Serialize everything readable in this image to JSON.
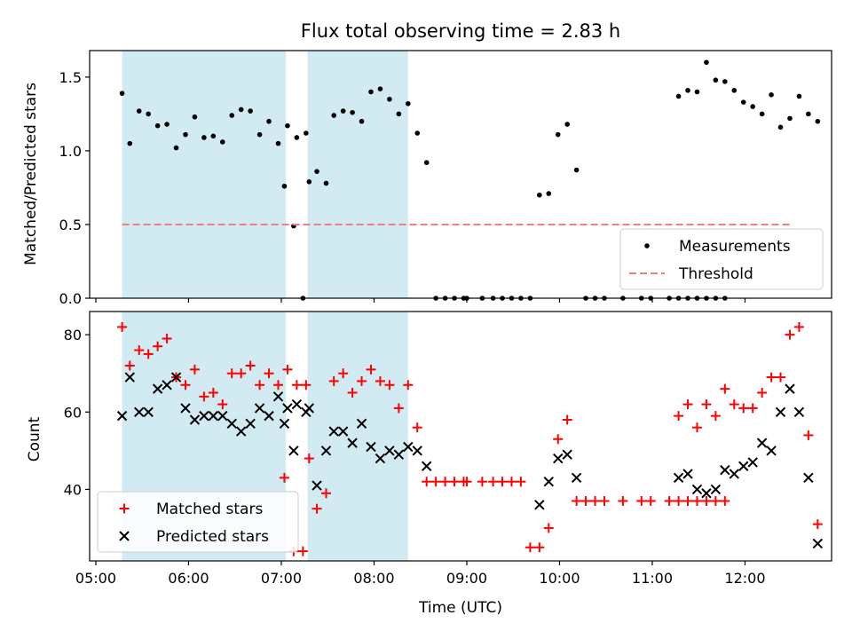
{
  "chart_data": [
    {
      "type": "scatter",
      "title": "Flux total observing time = 2.83 h",
      "ylabel": "Matched/Predicted stars",
      "xlim": [
        "04:56",
        "12:56"
      ],
      "ylim": [
        0,
        1.68
      ],
      "yticks": [
        0.0,
        0.5,
        1.0,
        1.5
      ],
      "ytick_labels": [
        "0.0",
        "0.5",
        "1.0",
        "1.5"
      ],
      "shaded_spans": [
        [
          "05:17",
          "07:03"
        ],
        [
          "07:17",
          "08:22"
        ]
      ],
      "shaded_color": "#add8e6",
      "legend_position": "lower-right",
      "series": [
        {
          "name": "Measurements",
          "marker": "dot",
          "color": "#000000",
          "points": [
            [
              "05:17",
              1.39
            ],
            [
              "05:22",
              1.05
            ],
            [
              "05:28",
              1.27
            ],
            [
              "05:34",
              1.25
            ],
            [
              "05:40",
              1.17
            ],
            [
              "05:46",
              1.18
            ],
            [
              "05:52",
              1.02
            ],
            [
              "05:58",
              1.11
            ],
            [
              "06:04",
              1.23
            ],
            [
              "06:10",
              1.09
            ],
            [
              "06:16",
              1.1
            ],
            [
              "06:22",
              1.06
            ],
            [
              "06:28",
              1.24
            ],
            [
              "06:34",
              1.28
            ],
            [
              "06:40",
              1.27
            ],
            [
              "06:46",
              1.11
            ],
            [
              "06:52",
              1.2
            ],
            [
              "06:58",
              1.05
            ],
            [
              "07:04",
              1.17
            ],
            [
              "07:10",
              1.09
            ],
            [
              "07:16",
              1.12
            ],
            [
              "07:02",
              0.76
            ],
            [
              "07:08",
              0.49
            ],
            [
              "07:14",
              0.0
            ],
            [
              "07:18",
              0.79
            ],
            [
              "07:23",
              0.86
            ],
            [
              "07:29",
              0.78
            ],
            [
              "07:34",
              1.24
            ],
            [
              "07:40",
              1.27
            ],
            [
              "07:46",
              1.26
            ],
            [
              "07:52",
              1.2
            ],
            [
              "07:58",
              1.4
            ],
            [
              "08:04",
              1.42
            ],
            [
              "08:10",
              1.35
            ],
            [
              "08:16",
              1.25
            ],
            [
              "08:22",
              1.32
            ],
            [
              "08:28",
              1.12
            ],
            [
              "08:34",
              0.92
            ],
            [
              "08:40",
              0.0
            ],
            [
              "08:46",
              0.0
            ],
            [
              "08:52",
              0.0
            ],
            [
              "08:58",
              0.0
            ],
            [
              "09:00",
              0.0
            ],
            [
              "09:10",
              0.0
            ],
            [
              "09:17",
              0.0
            ],
            [
              "09:23",
              0.0
            ],
            [
              "09:29",
              0.0
            ],
            [
              "09:35",
              0.0
            ],
            [
              "09:41",
              0.0
            ],
            [
              "09:47",
              0.7
            ],
            [
              "09:53",
              0.71
            ],
            [
              "09:59",
              1.11
            ],
            [
              "10:05",
              1.18
            ],
            [
              "10:11",
              0.87
            ],
            [
              "10:17",
              0.0
            ],
            [
              "10:23",
              0.0
            ],
            [
              "10:29",
              0.0
            ],
            [
              "10:41",
              0.0
            ],
            [
              "10:53",
              0.0
            ],
            [
              "10:59",
              0.0
            ],
            [
              "11:11",
              0.0
            ],
            [
              "11:17",
              0.0
            ],
            [
              "11:23",
              0.0
            ],
            [
              "11:29",
              0.0
            ],
            [
              "11:35",
              0.0
            ],
            [
              "11:41",
              0.0
            ],
            [
              "11:47",
              0.0
            ],
            [
              "11:17",
              1.37
            ],
            [
              "11:23",
              1.41
            ],
            [
              "11:29",
              1.4
            ],
            [
              "11:35",
              1.6
            ],
            [
              "11:41",
              1.48
            ],
            [
              "11:47",
              1.47
            ],
            [
              "11:53",
              1.41
            ],
            [
              "11:59",
              1.33
            ],
            [
              "12:05",
              1.3
            ],
            [
              "12:11",
              1.25
            ],
            [
              "12:17",
              1.38
            ],
            [
              "12:23",
              1.16
            ],
            [
              "12:29",
              1.22
            ],
            [
              "12:35",
              1.37
            ],
            [
              "12:41",
              1.25
            ],
            [
              "12:47",
              1.2
            ]
          ]
        },
        {
          "name": "Threshold",
          "line": "dashed",
          "color": "#f08080",
          "x": [
            "05:17",
            "12:31"
          ],
          "y": [
            0.5,
            0.5
          ]
        }
      ]
    },
    {
      "type": "scatter",
      "xlabel": "Time (UTC)",
      "ylabel": "Count",
      "xlim": [
        "04:56",
        "12:56"
      ],
      "ylim": [
        21.5,
        86
      ],
      "yticks": [
        40,
        60,
        80
      ],
      "ytick_labels": [
        "40",
        "60",
        "80"
      ],
      "xticks": [
        "05:00",
        "06:00",
        "07:00",
        "08:00",
        "09:00",
        "10:00",
        "11:00",
        "12:00"
      ],
      "xtick_labels": [
        "05:00",
        "06:00",
        "07:00",
        "08:00",
        "09:00",
        "10:00",
        "11:00",
        "12:00"
      ],
      "shaded_spans": [
        [
          "05:17",
          "07:03"
        ],
        [
          "07:17",
          "08:22"
        ]
      ],
      "shaded_color": "#add8e6",
      "legend_position": "lower-left",
      "series": [
        {
          "name": "Matched stars",
          "marker": "plus",
          "color": "#ff0000",
          "points": [
            [
              "05:17",
              82
            ],
            [
              "05:22",
              72
            ],
            [
              "05:28",
              76
            ],
            [
              "05:34",
              75
            ],
            [
              "05:40",
              77
            ],
            [
              "05:46",
              79
            ],
            [
              "05:52",
              69
            ],
            [
              "05:58",
              67
            ],
            [
              "06:04",
              71
            ],
            [
              "06:10",
              64
            ],
            [
              "06:16",
              65
            ],
            [
              "06:22",
              62
            ],
            [
              "06:28",
              70
            ],
            [
              "06:34",
              70
            ],
            [
              "06:40",
              72
            ],
            [
              "06:46",
              67
            ],
            [
              "06:52",
              70
            ],
            [
              "06:58",
              67
            ],
            [
              "07:04",
              71
            ],
            [
              "07:10",
              67
            ],
            [
              "07:16",
              67
            ],
            [
              "07:02",
              43
            ],
            [
              "07:08",
              24
            ],
            [
              "07:14",
              24
            ],
            [
              "07:18",
              48
            ],
            [
              "07:23",
              35
            ],
            [
              "07:29",
              39
            ],
            [
              "07:34",
              68
            ],
            [
              "07:40",
              70
            ],
            [
              "07:46",
              65
            ],
            [
              "07:52",
              68
            ],
            [
              "07:58",
              71
            ],
            [
              "08:04",
              68
            ],
            [
              "08:10",
              67
            ],
            [
              "08:16",
              61
            ],
            [
              "08:22",
              67
            ],
            [
              "08:28",
              56
            ],
            [
              "08:34",
              42
            ],
            [
              "08:40",
              42
            ],
            [
              "08:46",
              42
            ],
            [
              "08:52",
              42
            ],
            [
              "08:58",
              42
            ],
            [
              "09:00",
              42
            ],
            [
              "09:10",
              42
            ],
            [
              "09:17",
              42
            ],
            [
              "09:23",
              42
            ],
            [
              "09:29",
              42
            ],
            [
              "09:35",
              42
            ],
            [
              "09:41",
              25
            ],
            [
              "09:47",
              25
            ],
            [
              "09:53",
              30
            ],
            [
              "09:59",
              53
            ],
            [
              "10:05",
              58
            ],
            [
              "10:11",
              37
            ],
            [
              "10:17",
              37
            ],
            [
              "10:23",
              37
            ],
            [
              "10:29",
              37
            ],
            [
              "10:41",
              37
            ],
            [
              "10:53",
              37
            ],
            [
              "10:59",
              37
            ],
            [
              "11:11",
              37
            ],
            [
              "11:17",
              37
            ],
            [
              "11:23",
              37
            ],
            [
              "11:29",
              37
            ],
            [
              "11:35",
              37
            ],
            [
              "11:41",
              37
            ],
            [
              "11:47",
              37
            ],
            [
              "11:17",
              59
            ],
            [
              "11:23",
              62
            ],
            [
              "11:29",
              56
            ],
            [
              "11:35",
              62
            ],
            [
              "11:41",
              59
            ],
            [
              "11:47",
              66
            ],
            [
              "11:53",
              62
            ],
            [
              "11:59",
              61
            ],
            [
              "12:05",
              61
            ],
            [
              "12:11",
              65
            ],
            [
              "12:17",
              69
            ],
            [
              "12:23",
              69
            ],
            [
              "12:29",
              80
            ],
            [
              "12:35",
              82
            ],
            [
              "12:41",
              54
            ],
            [
              "12:47",
              31
            ]
          ]
        },
        {
          "name": "Predicted stars",
          "marker": "x",
          "color": "#000000",
          "points": [
            [
              "05:17",
              59
            ],
            [
              "05:22",
              69
            ],
            [
              "05:28",
              60
            ],
            [
              "05:34",
              60
            ],
            [
              "05:40",
              66
            ],
            [
              "05:46",
              67
            ],
            [
              "05:52",
              69
            ],
            [
              "05:58",
              61
            ],
            [
              "06:04",
              58
            ],
            [
              "06:10",
              59
            ],
            [
              "06:16",
              59
            ],
            [
              "06:22",
              59
            ],
            [
              "06:28",
              57
            ],
            [
              "06:34",
              55
            ],
            [
              "06:40",
              57
            ],
            [
              "06:46",
              61
            ],
            [
              "06:52",
              59
            ],
            [
              "06:58",
              64
            ],
            [
              "07:04",
              61
            ],
            [
              "07:10",
              62
            ],
            [
              "07:16",
              60
            ],
            [
              "07:02",
              57
            ],
            [
              "07:08",
              50
            ],
            [
              "07:18",
              61
            ],
            [
              "07:23",
              41
            ],
            [
              "07:29",
              50
            ],
            [
              "07:34",
              55
            ],
            [
              "07:40",
              55
            ],
            [
              "07:46",
              52
            ],
            [
              "07:52",
              57
            ],
            [
              "07:58",
              51
            ],
            [
              "08:04",
              48
            ],
            [
              "08:10",
              50
            ],
            [
              "08:16",
              49
            ],
            [
              "08:22",
              51
            ],
            [
              "08:28",
              50
            ],
            [
              "08:34",
              46
            ],
            [
              "09:47",
              36
            ],
            [
              "09:53",
              42
            ],
            [
              "09:59",
              48
            ],
            [
              "10:05",
              49
            ],
            [
              "10:11",
              43
            ],
            [
              "11:17",
              43
            ],
            [
              "11:23",
              44
            ],
            [
              "11:29",
              40
            ],
            [
              "11:35",
              39
            ],
            [
              "11:41",
              40
            ],
            [
              "11:47",
              45
            ],
            [
              "11:53",
              44
            ],
            [
              "11:59",
              46
            ],
            [
              "12:05",
              47
            ],
            [
              "12:11",
              52
            ],
            [
              "12:17",
              50
            ],
            [
              "12:23",
              60
            ],
            [
              "12:29",
              66
            ],
            [
              "12:35",
              60
            ],
            [
              "12:41",
              43
            ],
            [
              "12:47",
              26
            ]
          ]
        }
      ]
    }
  ]
}
